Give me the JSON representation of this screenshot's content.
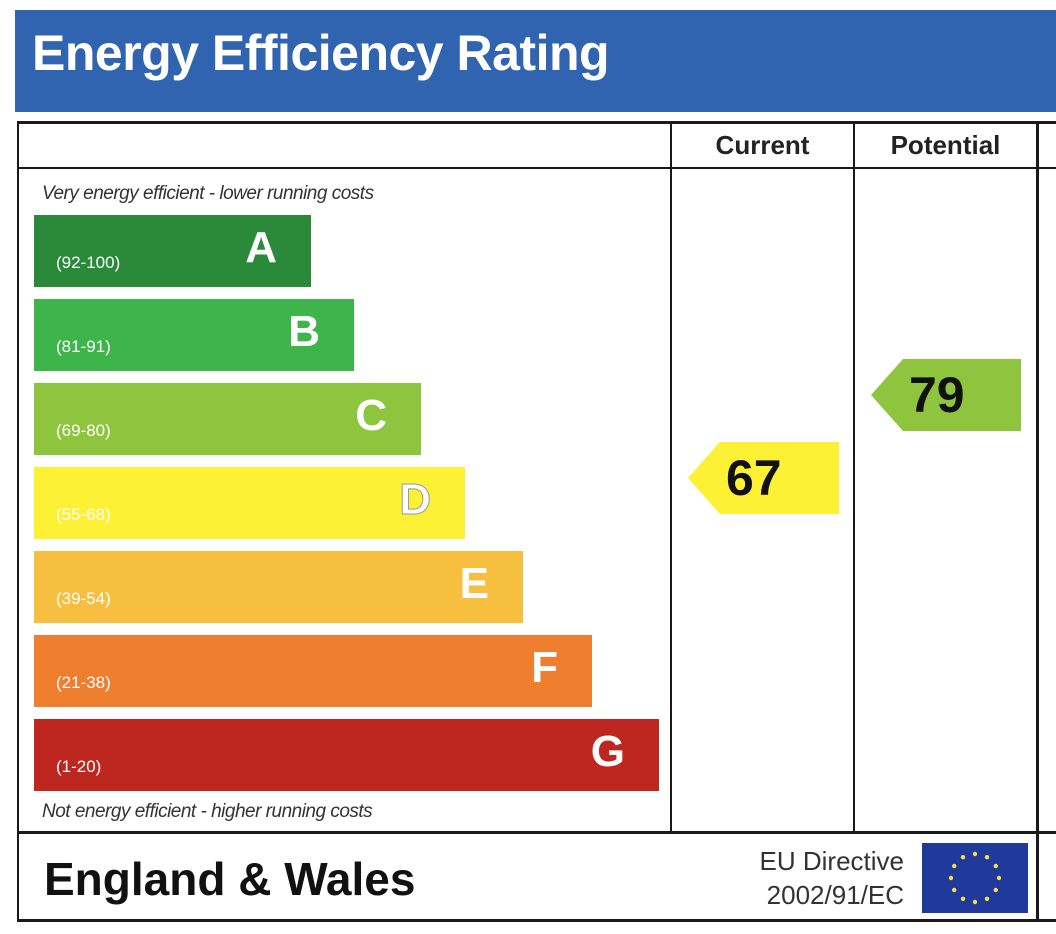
{
  "header": {
    "title": "Energy Efficiency Rating"
  },
  "columns": {
    "current": "Current",
    "potential": "Potential"
  },
  "notes": {
    "top": "Very energy efficient - lower running costs",
    "bottom": "Not energy efficient - higher running costs"
  },
  "footer": {
    "region": "England & Wales",
    "directive_line1": "EU Directive",
    "directive_line2": "2002/91/EC",
    "flag_icon": "eu-flag-icon"
  },
  "chart_data": {
    "type": "bar",
    "title": "Energy Efficiency Rating",
    "categories": [
      "A",
      "B",
      "C",
      "D",
      "E",
      "F",
      "G"
    ],
    "bands": [
      {
        "letter": "A",
        "range": "(92-100)",
        "color": "#2b8a3a"
      },
      {
        "letter": "B",
        "range": "(81-91)",
        "color": "#3db54a"
      },
      {
        "letter": "C",
        "range": "(69-80)",
        "color": "#8fc43f"
      },
      {
        "letter": "D",
        "range": "(55-68)",
        "color": "#fcf134"
      },
      {
        "letter": "E",
        "range": "(39-54)",
        "color": "#f6bf3f"
      },
      {
        "letter": "F",
        "range": "(21-38)",
        "color": "#ef7f2f"
      },
      {
        "letter": "G",
        "range": "(1-20)",
        "color": "#be2620"
      }
    ],
    "current": {
      "value": 67,
      "band": "D",
      "color": "#fcf134"
    },
    "potential": {
      "value": 79,
      "band": "C",
      "color": "#8fc43f"
    }
  }
}
